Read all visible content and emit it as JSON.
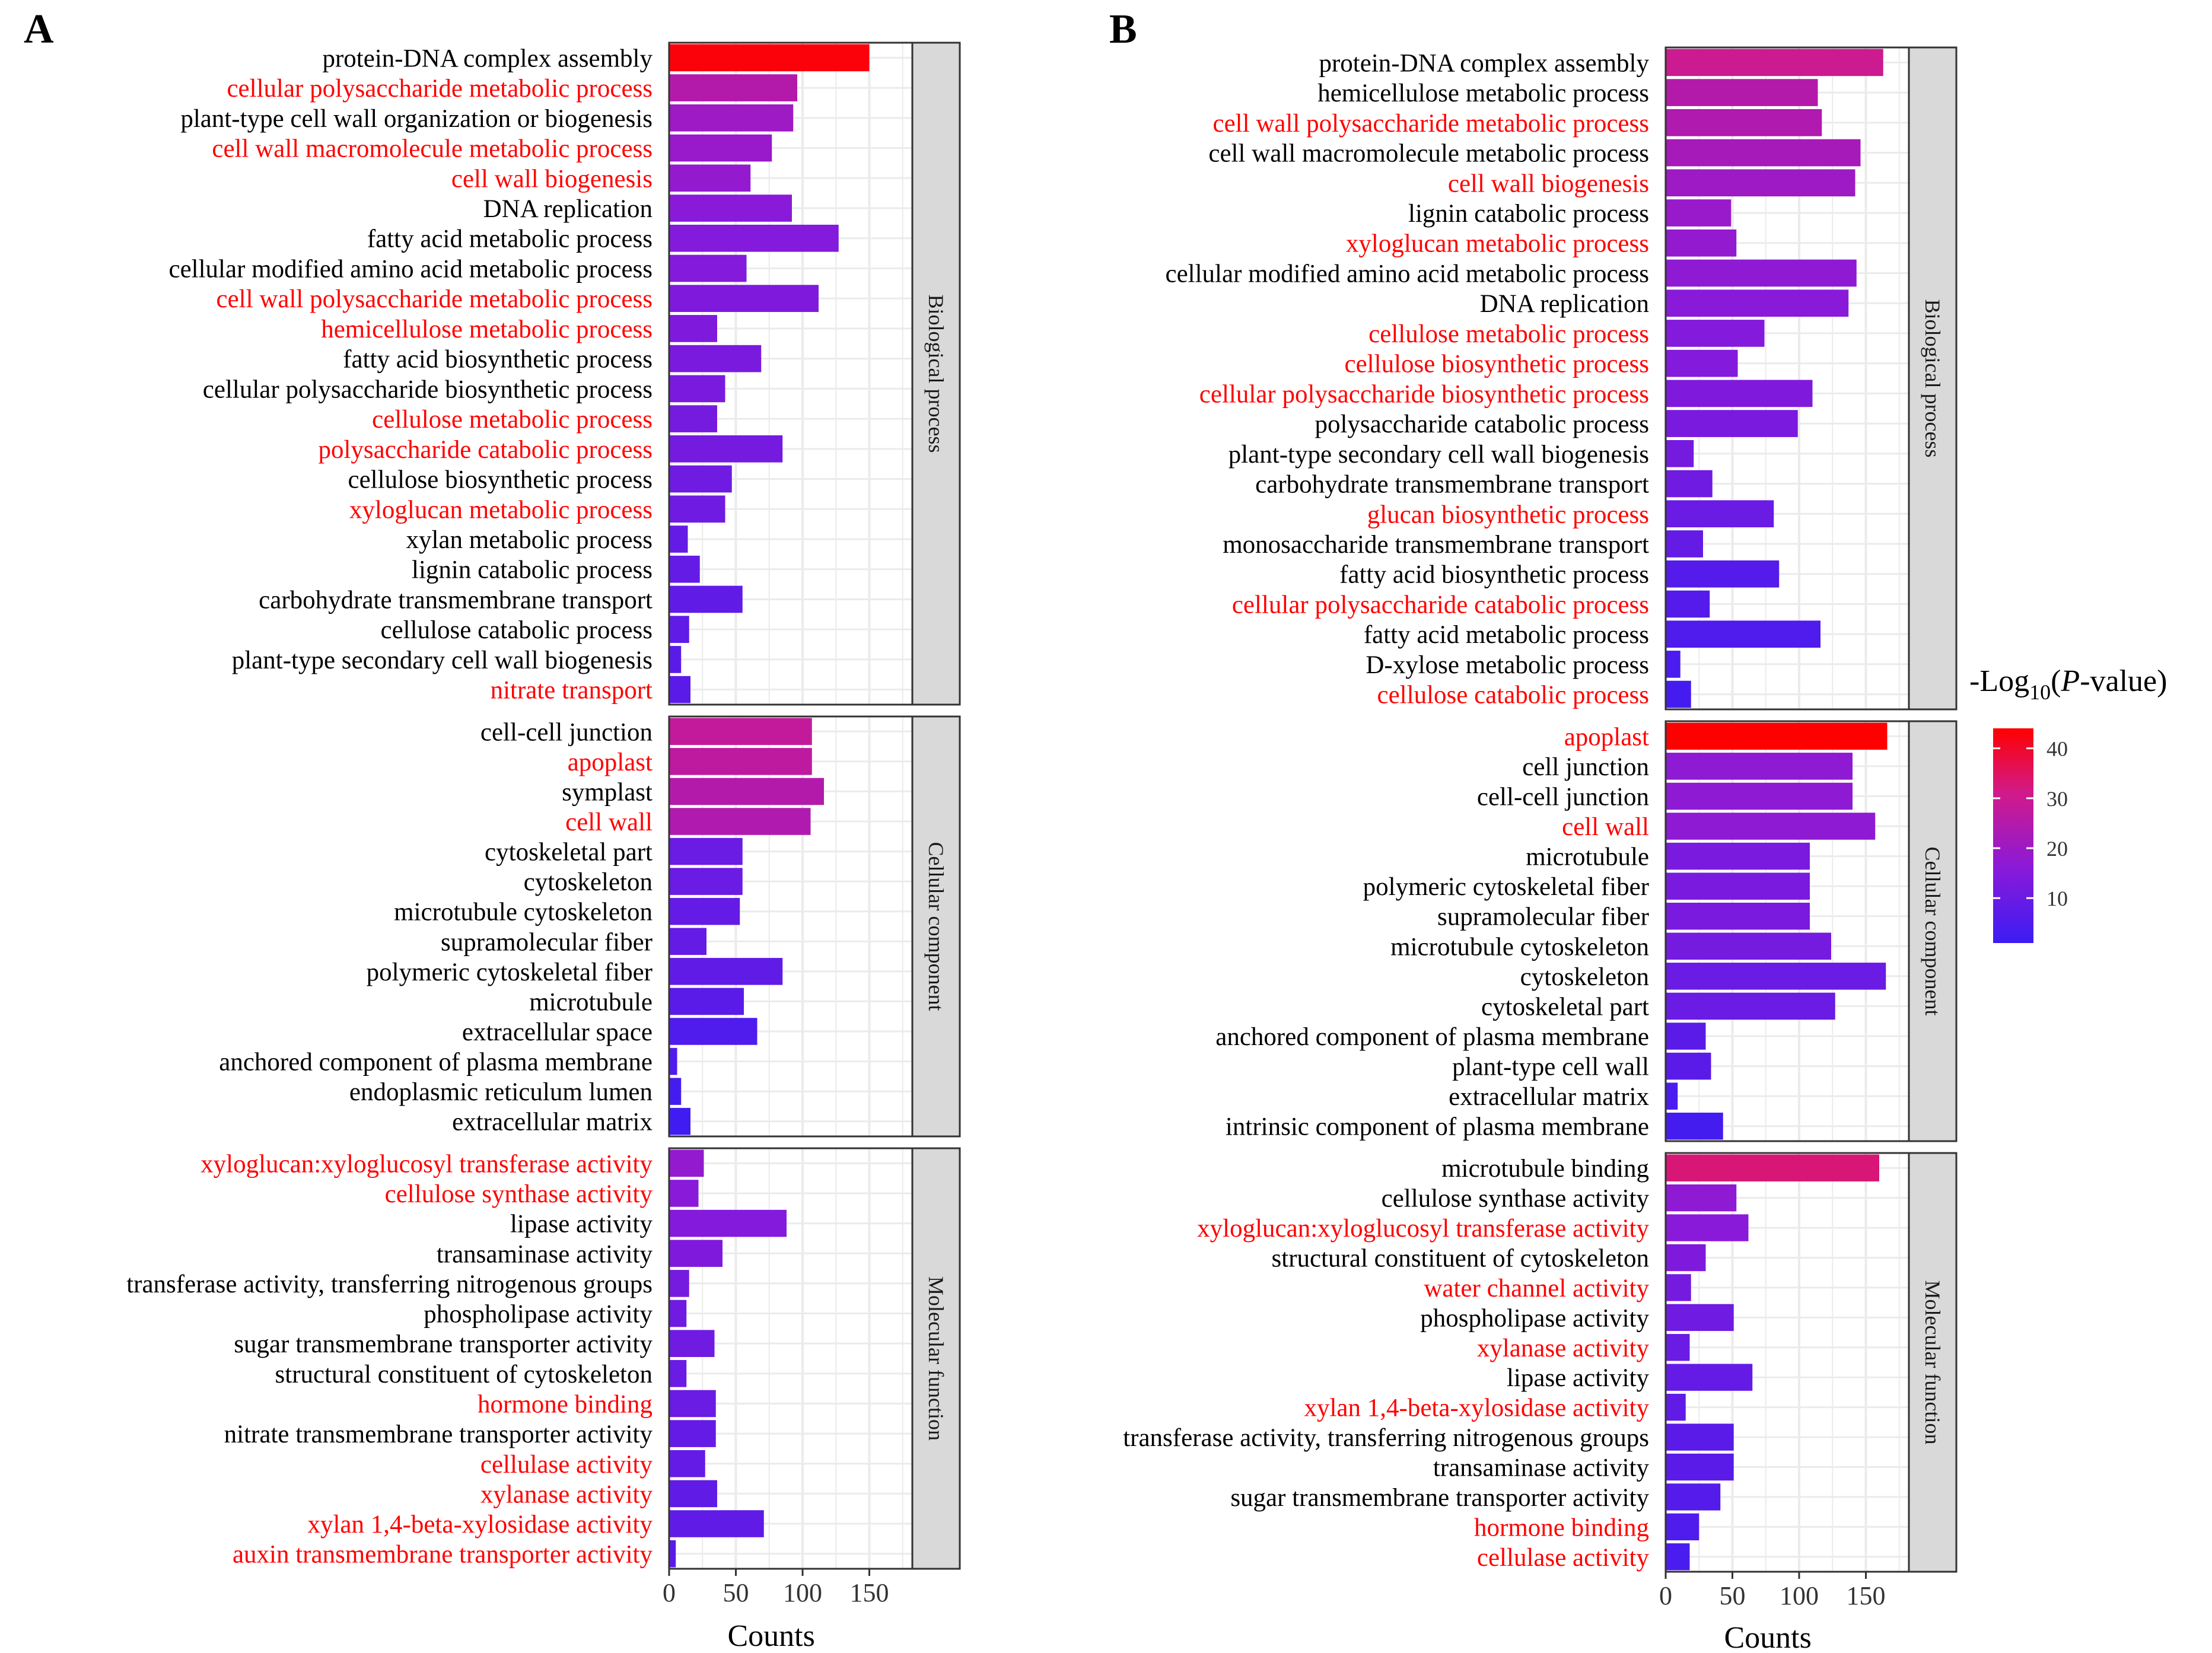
{
  "figure": {
    "axis_label": "Counts",
    "legend": {
      "title_prefix": "-Log",
      "title_sub": "10",
      "title_paren_open": "(",
      "title_italic": "P",
      "title_suffix": "-value)",
      "ticks": [
        10,
        20,
        30,
        40
      ],
      "min": 1,
      "max": 44
    }
  },
  "chart_data": [
    {
      "type": "bar",
      "orientation": "horizontal",
      "panel": "A",
      "xlabel": "Counts",
      "xlim": [
        0,
        180
      ],
      "xticks": [
        0,
        50,
        100,
        150
      ],
      "color_scale": {
        "label": "-Log10(P-value)",
        "low": "#3b1cf4",
        "high": "#ff0000",
        "min": 1,
        "max": 44
      },
      "facets": [
        {
          "name": "Biological process",
          "bars": [
            {
              "label": "protein-DNA complex assembly",
              "value": 150,
              "neglogp": 43,
              "highlight": false
            },
            {
              "label": "cellular polysaccharide metabolic process",
              "value": 96,
              "neglogp": 25,
              "highlight": true
            },
            {
              "label": "plant-type cell wall organization or biogenesis",
              "value": 93,
              "neglogp": 20,
              "highlight": false
            },
            {
              "label": "cell wall macromolecule metabolic process",
              "value": 77,
              "neglogp": 19,
              "highlight": true
            },
            {
              "label": "cell wall biogenesis",
              "value": 61,
              "neglogp": 18,
              "highlight": true
            },
            {
              "label": "DNA replication",
              "value": 92,
              "neglogp": 16,
              "highlight": false
            },
            {
              "label": "fatty acid metabolic process",
              "value": 127,
              "neglogp": 15,
              "highlight": false
            },
            {
              "label": "cellular modified amino acid metabolic process",
              "value": 58,
              "neglogp": 15,
              "highlight": false
            },
            {
              "label": "cell wall polysaccharide metabolic process",
              "value": 112,
              "neglogp": 14,
              "highlight": true
            },
            {
              "label": "hemicellulose metabolic process",
              "value": 36,
              "neglogp": 14,
              "highlight": true
            },
            {
              "label": "fatty acid biosynthetic process",
              "value": 69,
              "neglogp": 13,
              "highlight": false
            },
            {
              "label": "cellular polysaccharide biosynthetic process",
              "value": 42,
              "neglogp": 13,
              "highlight": false
            },
            {
              "label": "cellulose metabolic process",
              "value": 36,
              "neglogp": 12,
              "highlight": true
            },
            {
              "label": "polysaccharide catabolic process",
              "value": 85,
              "neglogp": 12,
              "highlight": true
            },
            {
              "label": "cellulose biosynthetic process",
              "value": 47,
              "neglogp": 11,
              "highlight": false
            },
            {
              "label": "xyloglucan metabolic process",
              "value": 42,
              "neglogp": 11,
              "highlight": true
            },
            {
              "label": "xylan metabolic process",
              "value": 14,
              "neglogp": 9,
              "highlight": false
            },
            {
              "label": "lignin catabolic process",
              "value": 23,
              "neglogp": 9,
              "highlight": false
            },
            {
              "label": "carbohydrate transmembrane transport",
              "value": 55,
              "neglogp": 8,
              "highlight": false
            },
            {
              "label": "cellulose catabolic process",
              "value": 15,
              "neglogp": 8,
              "highlight": false
            },
            {
              "label": "plant-type secondary cell wall biogenesis",
              "value": 9,
              "neglogp": 7,
              "highlight": false
            },
            {
              "label": "nitrate transport",
              "value": 16,
              "neglogp": 7,
              "highlight": true
            }
          ]
        },
        {
          "name": "Cellular component",
          "bars": [
            {
              "label": "cell-cell junction",
              "value": 107,
              "neglogp": 28,
              "highlight": false
            },
            {
              "label": "apoplast",
              "value": 107,
              "neglogp": 27,
              "highlight": true
            },
            {
              "label": "symplast",
              "value": 116,
              "neglogp": 25,
              "highlight": false
            },
            {
              "label": "cell wall",
              "value": 106,
              "neglogp": 24,
              "highlight": true
            },
            {
              "label": "cytoskeletal part",
              "value": 55,
              "neglogp": 10,
              "highlight": false
            },
            {
              "label": "cytoskeleton",
              "value": 55,
              "neglogp": 10,
              "highlight": false
            },
            {
              "label": "microtubule cytoskeleton",
              "value": 53,
              "neglogp": 9,
              "highlight": false
            },
            {
              "label": "supramolecular fiber",
              "value": 28,
              "neglogp": 9,
              "highlight": false
            },
            {
              "label": "polymeric cytoskeletal fiber",
              "value": 85,
              "neglogp": 8,
              "highlight": false
            },
            {
              "label": "microtubule",
              "value": 56,
              "neglogp": 7,
              "highlight": false
            },
            {
              "label": "extracellular space",
              "value": 66,
              "neglogp": 5,
              "highlight": false
            },
            {
              "label": "anchored component of plasma membrane",
              "value": 6,
              "neglogp": 5,
              "highlight": false
            },
            {
              "label": "endoplasmic reticulum lumen",
              "value": 9,
              "neglogp": 3,
              "highlight": false
            },
            {
              "label": "extracellular matrix",
              "value": 16,
              "neglogp": 2,
              "highlight": false
            }
          ]
        },
        {
          "name": "Molecular function",
          "bars": [
            {
              "label": "xyloglucan:xyloglucosyl transferase activity",
              "value": 26,
              "neglogp": 18,
              "highlight": true
            },
            {
              "label": "cellulose synthase activity",
              "value": 22,
              "neglogp": 16,
              "highlight": true
            },
            {
              "label": "lipase activity",
              "value": 88,
              "neglogp": 15,
              "highlight": false
            },
            {
              "label": "transaminase activity",
              "value": 40,
              "neglogp": 14,
              "highlight": false
            },
            {
              "label": "transferase activity, transferring nitrogenous groups",
              "value": 15,
              "neglogp": 12,
              "highlight": false
            },
            {
              "label": "phospholipase activity",
              "value": 13,
              "neglogp": 11,
              "highlight": false
            },
            {
              "label": "sugar transmembrane transporter activity",
              "value": 34,
              "neglogp": 11,
              "highlight": false
            },
            {
              "label": "structural constituent of cytoskeleton",
              "value": 13,
              "neglogp": 10,
              "highlight": false
            },
            {
              "label": "hormone binding",
              "value": 35,
              "neglogp": 10,
              "highlight": true
            },
            {
              "label": "nitrate transmembrane transporter activity",
              "value": 35,
              "neglogp": 9,
              "highlight": false
            },
            {
              "label": "cellulase activity",
              "value": 27,
              "neglogp": 9,
              "highlight": true
            },
            {
              "label": "xylanase activity",
              "value": 36,
              "neglogp": 8,
              "highlight": true
            },
            {
              "label": "xylan 1,4-beta-xylosidase activity",
              "value": 71,
              "neglogp": 8,
              "highlight": true
            },
            {
              "label": "auxin transmembrane transporter activity",
              "value": 5,
              "neglogp": 7,
              "highlight": true
            }
          ]
        }
      ]
    },
    {
      "type": "bar",
      "orientation": "horizontal",
      "panel": "B",
      "xlabel": "Counts",
      "xlim": [
        0,
        180
      ],
      "xticks": [
        0,
        50,
        100,
        150
      ],
      "color_scale": {
        "label": "-Log10(P-value)",
        "low": "#3b1cf4",
        "high": "#ff0000",
        "min": 1,
        "max": 44
      },
      "facets": [
        {
          "name": "Biological process",
          "bars": [
            {
              "label": "protein-DNA complex assembly",
              "value": 163,
              "neglogp": 30,
              "highlight": false
            },
            {
              "label": "hemicellulose metabolic process",
              "value": 114,
              "neglogp": 25,
              "highlight": false
            },
            {
              "label": "cell wall polysaccharide metabolic process",
              "value": 117,
              "neglogp": 24,
              "highlight": true
            },
            {
              "label": "cell wall macromolecule metabolic process",
              "value": 146,
              "neglogp": 22,
              "highlight": false
            },
            {
              "label": "cell wall biogenesis",
              "value": 142,
              "neglogp": 20,
              "highlight": true
            },
            {
              "label": "lignin catabolic process",
              "value": 49,
              "neglogp": 19,
              "highlight": false
            },
            {
              "label": "xyloglucan metabolic process",
              "value": 53,
              "neglogp": 18,
              "highlight": true
            },
            {
              "label": "cellular modified amino acid metabolic process",
              "value": 143,
              "neglogp": 17,
              "highlight": false
            },
            {
              "label": "DNA replication",
              "value": 137,
              "neglogp": 16,
              "highlight": false
            },
            {
              "label": "cellulose metabolic process",
              "value": 74,
              "neglogp": 15,
              "highlight": true
            },
            {
              "label": "cellulose biosynthetic process",
              "value": 54,
              "neglogp": 15,
              "highlight": true
            },
            {
              "label": "cellular polysaccharide biosynthetic process",
              "value": 110,
              "neglogp": 14,
              "highlight": true
            },
            {
              "label": "polysaccharide catabolic process",
              "value": 99,
              "neglogp": 13,
              "highlight": false
            },
            {
              "label": "plant-type secondary cell wall biogenesis",
              "value": 21,
              "neglogp": 12,
              "highlight": false
            },
            {
              "label": "carbohydrate transmembrane transport",
              "value": 35,
              "neglogp": 11,
              "highlight": false
            },
            {
              "label": "glucan biosynthetic process",
              "value": 81,
              "neglogp": 10,
              "highlight": true
            },
            {
              "label": "monosaccharide transmembrane transport",
              "value": 28,
              "neglogp": 9,
              "highlight": false
            },
            {
              "label": "fatty acid biosynthetic process",
              "value": 85,
              "neglogp": 6,
              "highlight": false
            },
            {
              "label": "cellular polysaccharide catabolic process",
              "value": 33,
              "neglogp": 6,
              "highlight": true
            },
            {
              "label": "fatty acid metabolic process",
              "value": 116,
              "neglogp": 5,
              "highlight": false
            },
            {
              "label": "D-xylose metabolic process",
              "value": 11,
              "neglogp": 4,
              "highlight": false
            },
            {
              "label": "cellulose catabolic process",
              "value": 19,
              "neglogp": 3,
              "highlight": true
            }
          ]
        },
        {
          "name": "Cellular component",
          "bars": [
            {
              "label": "apoplast",
              "value": 166,
              "neglogp": 44,
              "highlight": true
            },
            {
              "label": "cell junction",
              "value": 140,
              "neglogp": 17,
              "highlight": false
            },
            {
              "label": "cell-cell junction",
              "value": 140,
              "neglogp": 17,
              "highlight": false
            },
            {
              "label": "cell wall",
              "value": 157,
              "neglogp": 17,
              "highlight": true
            },
            {
              "label": "microtubule",
              "value": 108,
              "neglogp": 13,
              "highlight": false
            },
            {
              "label": "polymeric cytoskeletal fiber",
              "value": 108,
              "neglogp": 13,
              "highlight": false
            },
            {
              "label": "supramolecular fiber",
              "value": 108,
              "neglogp": 13,
              "highlight": false
            },
            {
              "label": "microtubule cytoskeleton",
              "value": 124,
              "neglogp": 12,
              "highlight": false
            },
            {
              "label": "cytoskeleton",
              "value": 165,
              "neglogp": 10,
              "highlight": false
            },
            {
              "label": "cytoskeletal part",
              "value": 127,
              "neglogp": 10,
              "highlight": false
            },
            {
              "label": "anchored component of plasma membrane",
              "value": 30,
              "neglogp": 7,
              "highlight": false
            },
            {
              "label": "plant-type cell wall",
              "value": 34,
              "neglogp": 7,
              "highlight": false
            },
            {
              "label": "extracellular matrix",
              "value": 9,
              "neglogp": 4,
              "highlight": false
            },
            {
              "label": "intrinsic component of plasma membrane",
              "value": 43,
              "neglogp": 3,
              "highlight": false
            }
          ]
        },
        {
          "name": "Molecular function",
          "bars": [
            {
              "label": "microtubule binding",
              "value": 160,
              "neglogp": 33,
              "highlight": false
            },
            {
              "label": "cellulose synthase activity",
              "value": 53,
              "neglogp": 17,
              "highlight": false
            },
            {
              "label": "xyloglucan:xyloglucosyl transferase activity",
              "value": 62,
              "neglogp": 16,
              "highlight": true
            },
            {
              "label": "structural constituent of cytoskeleton",
              "value": 30,
              "neglogp": 14,
              "highlight": false
            },
            {
              "label": "water channel activity",
              "value": 19,
              "neglogp": 12,
              "highlight": true
            },
            {
              "label": "phospholipase activity",
              "value": 51,
              "neglogp": 11,
              "highlight": false
            },
            {
              "label": "xylanase activity",
              "value": 18,
              "neglogp": 10,
              "highlight": true
            },
            {
              "label": "lipase activity",
              "value": 65,
              "neglogp": 9,
              "highlight": false
            },
            {
              "label": "xylan 1,4-beta-xylosidase activity",
              "value": 15,
              "neglogp": 8,
              "highlight": true
            },
            {
              "label": "transferase activity, transferring nitrogenous groups",
              "value": 51,
              "neglogp": 7,
              "highlight": false
            },
            {
              "label": "transaminase activity",
              "value": 51,
              "neglogp": 7,
              "highlight": false
            },
            {
              "label": "sugar transmembrane transporter activity",
              "value": 41,
              "neglogp": 6,
              "highlight": false
            },
            {
              "label": "hormone binding",
              "value": 25,
              "neglogp": 5,
              "highlight": true
            },
            {
              "label": "cellulase activity",
              "value": 18,
              "neglogp": 4,
              "highlight": true
            }
          ]
        }
      ]
    }
  ]
}
